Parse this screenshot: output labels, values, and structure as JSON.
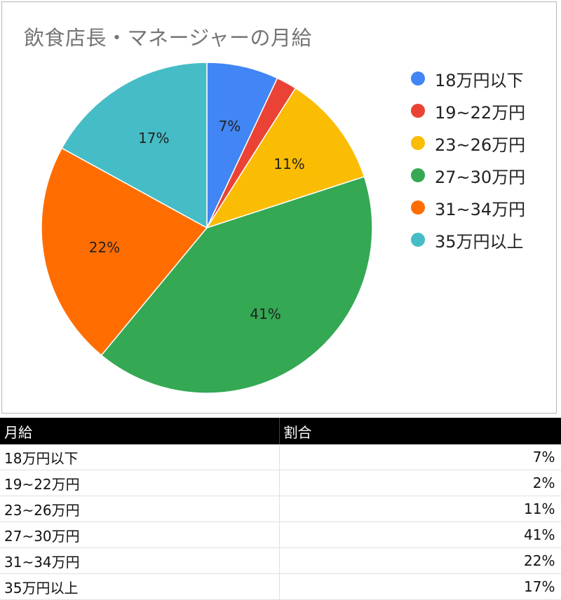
{
  "chart_data": {
    "type": "pie",
    "title": "飲食店長・マネージャーの月給",
    "categories": [
      "18万円以下",
      "19~22万円",
      "23~26万円",
      "27~30万円",
      "31~34万円",
      "35万円以上"
    ],
    "values": [
      7,
      2,
      11,
      41,
      22,
      17
    ],
    "data_labels": [
      "7%",
      "",
      "11%",
      "41%",
      "22%",
      "17%"
    ],
    "colors": [
      "#4285f4",
      "#ea4335",
      "#fbbc04",
      "#34a853",
      "#ff6d01",
      "#46bdc6"
    ],
    "legend_position": "right",
    "start_angle": "12 o'clock, clockwise"
  },
  "table": {
    "headers": [
      "月給",
      "割合"
    ],
    "rows": [
      [
        "18万円以下",
        "7%"
      ],
      [
        "19~22万円",
        "2%"
      ],
      [
        "23~26万円",
        "11%"
      ],
      [
        "27~30万円",
        "41%"
      ],
      [
        "31~34万円",
        "22%"
      ],
      [
        "35万円以上",
        "17%"
      ]
    ]
  }
}
